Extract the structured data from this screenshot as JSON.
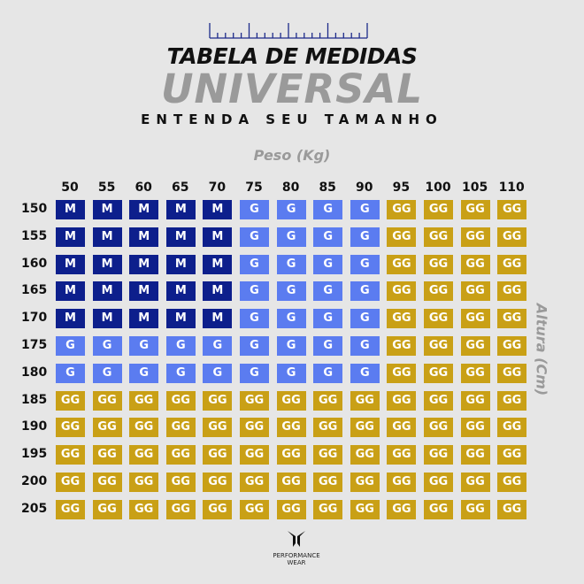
{
  "header": {
    "title": "TABELA DE MEDIDAS",
    "subtitle": "UNIVERSAL",
    "tagline": "ENTENDA SEU TAMANHO"
  },
  "brand": {
    "line1": "PERFORMANCE",
    "line2": "WEAR"
  },
  "colors": {
    "M": "#0d1f8c",
    "G": "#5b7cf0",
    "GG": "#c9a016",
    "background": "#e6e6e6"
  },
  "chart_data": {
    "type": "table",
    "title": "TABELA DE MEDIDAS UNIVERSAL",
    "xlabel": "Peso (Kg)",
    "ylabel": "Altura (Cm)",
    "columns": [
      "50",
      "55",
      "60",
      "65",
      "70",
      "75",
      "80",
      "85",
      "90",
      "95",
      "100",
      "105",
      "110"
    ],
    "rows": [
      {
        "label": "150",
        "values": [
          "M",
          "M",
          "M",
          "M",
          "M",
          "G",
          "G",
          "G",
          "G",
          "GG",
          "GG",
          "GG",
          "GG"
        ]
      },
      {
        "label": "155",
        "values": [
          "M",
          "M",
          "M",
          "M",
          "M",
          "G",
          "G",
          "G",
          "G",
          "GG",
          "GG",
          "GG",
          "GG"
        ]
      },
      {
        "label": "160",
        "values": [
          "M",
          "M",
          "M",
          "M",
          "M",
          "G",
          "G",
          "G",
          "G",
          "GG",
          "GG",
          "GG",
          "GG"
        ]
      },
      {
        "label": "165",
        "values": [
          "M",
          "M",
          "M",
          "M",
          "M",
          "G",
          "G",
          "G",
          "G",
          "GG",
          "GG",
          "GG",
          "GG"
        ]
      },
      {
        "label": "170",
        "values": [
          "M",
          "M",
          "M",
          "M",
          "M",
          "G",
          "G",
          "G",
          "G",
          "GG",
          "GG",
          "GG",
          "GG"
        ]
      },
      {
        "label": "175",
        "values": [
          "G",
          "G",
          "G",
          "G",
          "G",
          "G",
          "G",
          "G",
          "G",
          "GG",
          "GG",
          "GG",
          "GG"
        ]
      },
      {
        "label": "180",
        "values": [
          "G",
          "G",
          "G",
          "G",
          "G",
          "G",
          "G",
          "G",
          "G",
          "GG",
          "GG",
          "GG",
          "GG"
        ]
      },
      {
        "label": "185",
        "values": [
          "GG",
          "GG",
          "GG",
          "GG",
          "GG",
          "GG",
          "GG",
          "GG",
          "GG",
          "GG",
          "GG",
          "GG",
          "GG"
        ]
      },
      {
        "label": "190",
        "values": [
          "GG",
          "GG",
          "GG",
          "GG",
          "GG",
          "GG",
          "GG",
          "GG",
          "GG",
          "GG",
          "GG",
          "GG",
          "GG"
        ]
      },
      {
        "label": "195",
        "values": [
          "GG",
          "GG",
          "GG",
          "GG",
          "GG",
          "GG",
          "GG",
          "GG",
          "GG",
          "GG",
          "GG",
          "GG",
          "GG"
        ]
      },
      {
        "label": "200",
        "values": [
          "GG",
          "GG",
          "GG",
          "GG",
          "GG",
          "GG",
          "GG",
          "GG",
          "GG",
          "GG",
          "GG",
          "GG",
          "GG"
        ]
      },
      {
        "label": "205",
        "values": [
          "GG",
          "GG",
          "GG",
          "GG",
          "GG",
          "GG",
          "GG",
          "GG",
          "GG",
          "GG",
          "GG",
          "GG",
          "GG"
        ]
      }
    ]
  }
}
